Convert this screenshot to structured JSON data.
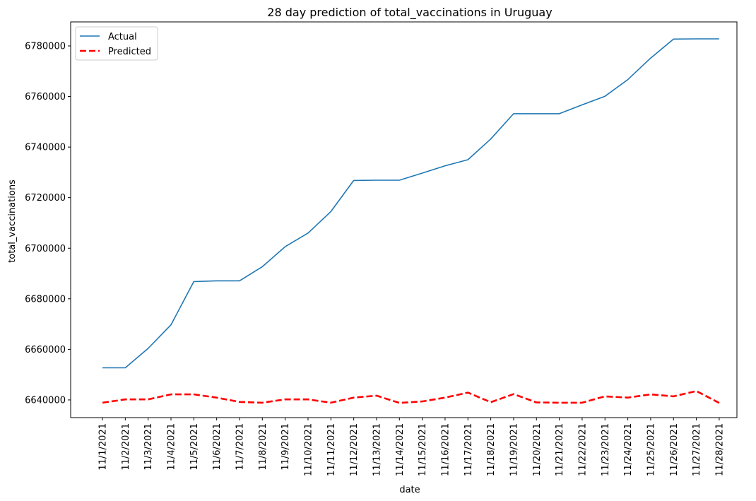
{
  "chart_data": {
    "type": "line",
    "title": "28 day prediction of total_vaccinations in Uruguay",
    "xlabel": "date",
    "ylabel": "total_vaccinations",
    "categories": [
      "11/1/2021",
      "11/2/2021",
      "11/3/2021",
      "11/4/2021",
      "11/5/2021",
      "11/6/2021",
      "11/7/2021",
      "11/8/2021",
      "11/9/2021",
      "11/10/2021",
      "11/11/2021",
      "11/12/2021",
      "11/13/2021",
      "11/14/2021",
      "11/15/2021",
      "11/16/2021",
      "11/17/2021",
      "11/18/2021",
      "11/19/2021",
      "11/20/2021",
      "11/21/2021",
      "11/22/2021",
      "11/23/2021",
      "11/24/2021",
      "11/25/2021",
      "11/26/2021",
      "11/27/2021",
      "11/28/2021"
    ],
    "yticks": [
      6640000,
      6660000,
      6680000,
      6700000,
      6720000,
      6740000,
      6760000,
      6780000
    ],
    "ylim": [
      6633000,
      6789500
    ],
    "grid": false,
    "legend_position": "top-left",
    "series": [
      {
        "name": "Actual",
        "color": "#1f77b4",
        "style": "solid",
        "values": [
          6652700,
          6652700,
          6660400,
          6669700,
          6686800,
          6687100,
          6687100,
          6692700,
          6700600,
          6706000,
          6714500,
          6726800,
          6726900,
          6726900,
          6729700,
          6732600,
          6735000,
          6743200,
          6753200,
          6753200,
          6753200,
          6756700,
          6760100,
          6766700,
          6775200,
          6782700,
          6782800,
          6782800
        ]
      },
      {
        "name": "Predicted",
        "color": "#ff0000",
        "style": "dashed",
        "values": [
          6638900,
          6640200,
          6640200,
          6642200,
          6642200,
          6640900,
          6639200,
          6638900,
          6640200,
          6640200,
          6638900,
          6640900,
          6641700,
          6638800,
          6639400,
          6640900,
          6642900,
          6639100,
          6642300,
          6639000,
          6638900,
          6638900,
          6641400,
          6640900,
          6642200,
          6641400,
          6643500,
          6638800
        ]
      }
    ]
  }
}
